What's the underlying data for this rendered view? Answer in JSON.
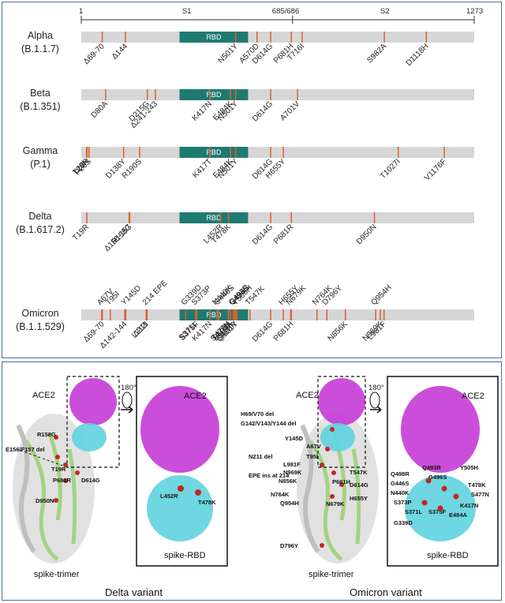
{
  "top_panel": {
    "axis": {
      "start": "1",
      "end": "1273",
      "s1_label": "S1",
      "boundary_label": "685/686",
      "s2_label": "S2",
      "length": 1273,
      "boundary": 685
    },
    "rbd_label": "RBD",
    "colors": {
      "bar": "#d6d6d6",
      "rbd": "#1f7a72",
      "mutation": "#d9622b"
    },
    "variants": [
      {
        "name": "Alpha",
        "lineage": "(B.1.1.7)",
        "below": [
          "Δ69-70",
          "Δ144",
          "N501Y",
          "A570D",
          "D614G",
          "P681H",
          "T716I",
          "S982A",
          "D1118H"
        ],
        "above": []
      },
      {
        "name": "Beta",
        "lineage": "(B.1.351)",
        "below": [
          "D80A",
          "D215G",
          "Δ241-243",
          "K417N",
          "E484K",
          "N501Y",
          "D614G",
          "A701V"
        ],
        "above": []
      },
      {
        "name": "Gamma",
        "lineage": "(P.1)",
        "below": [
          "L18F",
          "T20N",
          "P26S",
          "D138Y",
          "R190S",
          "K417T",
          "E484K",
          "N501Y",
          "D614G",
          "H655Y",
          "T1027I",
          "V1176F"
        ],
        "above": []
      },
      {
        "name": "Delta",
        "lineage": "(B.1.617.2)",
        "below": [
          "T19R",
          "Δ156-157",
          "R158G",
          "L452R",
          "T478K",
          "D614G",
          "P681R",
          "D950N"
        ],
        "above": []
      },
      {
        "name": "Omicron",
        "lineage": "(B.1.1.529)",
        "above": [
          "A67V",
          "T95I",
          "Y145D",
          "214 EPE",
          "G339D",
          "S373P",
          "N440K",
          "G446S",
          "Q493R",
          "G496S",
          "Y505H",
          "T547K",
          "H655Y",
          "N679K",
          "N764K",
          "D796Y",
          "Q954H"
        ],
        "below": [
          "Δ69-70",
          "Δ142-144",
          "Δ211",
          "L212I",
          "S371L",
          "S375F",
          "K417N",
          "S477N",
          "T478K",
          "E484A",
          "Q498R",
          "N501Y",
          "D614G",
          "P681H",
          "N856K",
          "N969K",
          "L981F"
        ]
      }
    ]
  },
  "bottom_panel": {
    "delta": {
      "caption": "Delta variant",
      "ace2_label": "ACE2",
      "zoom_ace2_label": "ACE2",
      "trimer_label": "spike-trimer",
      "rbd_label": "spike-RBD",
      "rotation_label": "180°",
      "trimer_mutations": [
        "R158G",
        "E156/F157 del",
        "T19R",
        "P681R",
        "D614G",
        "D950N"
      ],
      "rbd_mutations": [
        "L452R",
        "T478K"
      ]
    },
    "omicron": {
      "caption": "Omicron variant",
      "ace2_label": "ACE2",
      "zoom_ace2_label": "ACE2",
      "trimer_label": "spike-trimer",
      "rbd_label": "spike-RBD",
      "rotation_label": "180°",
      "trimer_mutations": [
        "H69/V70 del",
        "G142/V143/Y144 del",
        "Y145D",
        "A67V",
        "N211 del",
        "T95I",
        "L981F",
        "N969K",
        "N856K",
        "EPE ins at 214",
        "P681H",
        "T547K",
        "D614G",
        "N764K",
        "Q954H",
        "H655Y",
        "N679K",
        "D796Y"
      ],
      "rbd_mutations": [
        "Q498R",
        "Q493R",
        "Y505H",
        "G496S",
        "G446S",
        "T478K",
        "N440K",
        "S477N",
        "S373P",
        "K417N",
        "S371L",
        "S375F",
        "E484A",
        "G339D"
      ]
    }
  }
}
